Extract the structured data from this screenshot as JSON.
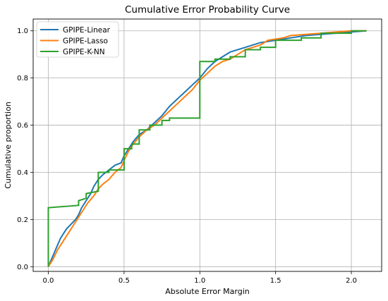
{
  "chart_data": {
    "type": "line",
    "title": "Cumulative Error Probability Curve",
    "xlabel": "Absolute Error Margin",
    "ylabel": "Cumulative proportion",
    "xlim": [
      -0.1,
      2.2
    ],
    "ylim": [
      -0.02,
      1.05
    ],
    "xticks": [
      0.0,
      0.5,
      1.0,
      1.5,
      2.0
    ],
    "xtick_labels": [
      "0.0",
      "0.5",
      "1.0",
      "1.5",
      "2.0"
    ],
    "yticks": [
      0.0,
      0.2,
      0.4,
      0.6,
      0.8,
      1.0
    ],
    "ytick_labels": [
      "0.0",
      "0.2",
      "0.4",
      "0.6",
      "0.8",
      "1.0"
    ],
    "grid": true,
    "legend_position": "top-left",
    "series": [
      {
        "name": "GPIPE-Linear",
        "color": "#1f77b4",
        "step": false,
        "x": [
          0.0,
          0.02,
          0.04,
          0.06,
          0.08,
          0.1,
          0.12,
          0.15,
          0.18,
          0.2,
          0.22,
          0.25,
          0.28,
          0.3,
          0.33,
          0.36,
          0.4,
          0.44,
          0.48,
          0.5,
          0.53,
          0.56,
          0.6,
          0.65,
          0.7,
          0.75,
          0.8,
          0.85,
          0.9,
          0.95,
          1.0,
          1.05,
          1.1,
          1.15,
          1.2,
          1.3,
          1.35,
          1.4,
          1.5,
          1.6,
          1.7,
          1.8,
          2.0,
          2.1
        ],
        "y": [
          0.0,
          0.03,
          0.06,
          0.09,
          0.12,
          0.14,
          0.16,
          0.18,
          0.2,
          0.22,
          0.25,
          0.28,
          0.31,
          0.34,
          0.37,
          0.39,
          0.41,
          0.43,
          0.44,
          0.47,
          0.5,
          0.53,
          0.56,
          0.58,
          0.61,
          0.64,
          0.68,
          0.71,
          0.74,
          0.77,
          0.8,
          0.84,
          0.87,
          0.89,
          0.91,
          0.93,
          0.94,
          0.95,
          0.96,
          0.97,
          0.98,
          0.985,
          0.995,
          1.0
        ]
      },
      {
        "name": "GPIPE-Lasso",
        "color": "#ff7f0e",
        "step": false,
        "x": [
          0.0,
          0.03,
          0.06,
          0.09,
          0.12,
          0.15,
          0.18,
          0.2,
          0.23,
          0.26,
          0.3,
          0.33,
          0.36,
          0.4,
          0.44,
          0.48,
          0.5,
          0.53,
          0.56,
          0.6,
          0.65,
          0.7,
          0.75,
          0.8,
          0.85,
          0.9,
          0.95,
          1.0,
          1.05,
          1.1,
          1.15,
          1.2,
          1.25,
          1.3,
          1.35,
          1.4,
          1.45,
          1.5,
          1.55,
          1.6,
          1.7,
          1.8,
          1.9,
          2.0,
          2.1
        ],
        "y": [
          0.0,
          0.03,
          0.07,
          0.1,
          0.13,
          0.16,
          0.19,
          0.21,
          0.24,
          0.27,
          0.3,
          0.33,
          0.35,
          0.37,
          0.4,
          0.42,
          0.45,
          0.49,
          0.52,
          0.55,
          0.58,
          0.6,
          0.63,
          0.66,
          0.69,
          0.72,
          0.75,
          0.79,
          0.82,
          0.85,
          0.87,
          0.88,
          0.9,
          0.92,
          0.93,
          0.94,
          0.96,
          0.965,
          0.97,
          0.98,
          0.985,
          0.99,
          0.995,
          1.0,
          1.0
        ]
      },
      {
        "name": "GPIPE-K-NN",
        "color": "#2ca02c",
        "step": true,
        "x": [
          0.0,
          0.0,
          0.2,
          0.2,
          0.25,
          0.25,
          0.33,
          0.33,
          0.4,
          0.4,
          0.5,
          0.5,
          0.55,
          0.55,
          0.6,
          0.6,
          0.67,
          0.67,
          0.75,
          0.75,
          0.8,
          0.8,
          1.0,
          1.0,
          1.1,
          1.1,
          1.2,
          1.2,
          1.3,
          1.3,
          1.4,
          1.4,
          1.5,
          1.5,
          1.67,
          1.67,
          1.8,
          1.8,
          2.0,
          2.0,
          2.1
        ],
        "y": [
          0.0,
          0.25,
          0.26,
          0.28,
          0.29,
          0.31,
          0.32,
          0.4,
          0.4,
          0.41,
          0.41,
          0.5,
          0.5,
          0.52,
          0.52,
          0.58,
          0.58,
          0.6,
          0.6,
          0.62,
          0.62,
          0.63,
          0.63,
          0.87,
          0.87,
          0.88,
          0.88,
          0.89,
          0.89,
          0.92,
          0.92,
          0.93,
          0.93,
          0.96,
          0.96,
          0.97,
          0.97,
          0.99,
          0.99,
          1.0,
          1.0
        ]
      }
    ]
  }
}
